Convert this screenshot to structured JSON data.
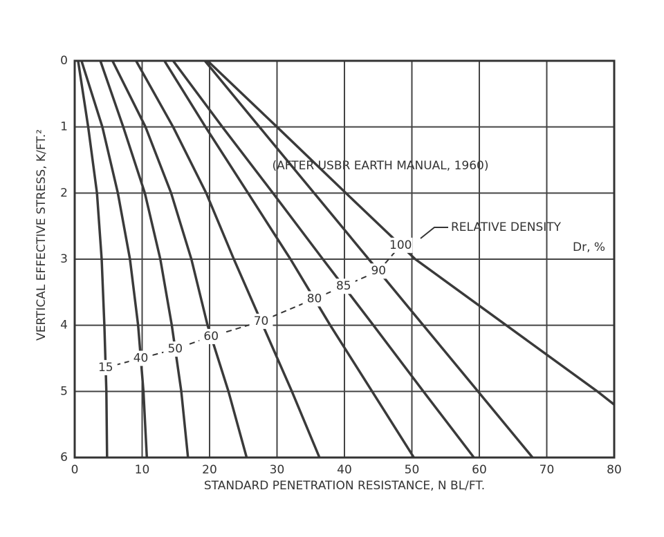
{
  "chart_data": {
    "type": "line",
    "x_label": "STANDARD PENETRATION RESISTANCE, N BL/FT.",
    "y_label": "VERTICAL EFFECTIVE STRESS, K/FT.²",
    "annotations": {
      "source": "(AFTER USBR EARTH MANUAL, 1960)",
      "legend_title": "RELATIVE DENSITY",
      "legend_unit": "Dr, %"
    },
    "xlim": [
      0,
      80
    ],
    "xticks": [
      0,
      10,
      20,
      30,
      40,
      50,
      60,
      70,
      80
    ],
    "ylim": [
      0,
      6
    ],
    "yticks": [
      0,
      1,
      2,
      3,
      4,
      5,
      6
    ],
    "y_reversed": true,
    "grid": true,
    "color": "#3a3a3a",
    "series": [
      {
        "name": "15",
        "x": [
          0.5,
          2.0,
          3.3,
          4.0,
          4.4,
          4.7,
          4.8
        ],
        "y": [
          0,
          1,
          2,
          3,
          4,
          5,
          6
        ]
      },
      {
        "name": "40",
        "x": [
          1.0,
          4.1,
          6.4,
          8.2,
          9.4,
          10.2,
          10.7
        ],
        "y": [
          0,
          1,
          2,
          3,
          4,
          5,
          6
        ]
      },
      {
        "name": "50",
        "x": [
          3.8,
          7.2,
          10.4,
          12.7,
          14.4,
          15.8,
          16.8
        ],
        "y": [
          0,
          1,
          2,
          3,
          4,
          5,
          6
        ]
      },
      {
        "name": "60",
        "x": [
          5.6,
          10.5,
          14.3,
          17.3,
          19.7,
          22.8,
          25.5
        ],
        "y": [
          0,
          1,
          2,
          3,
          4,
          5,
          6
        ]
      },
      {
        "name": "70",
        "x": [
          9.1,
          14.6,
          19.5,
          23.6,
          27.9,
          32.2,
          36.3
        ],
        "y": [
          0,
          1,
          2,
          3,
          4,
          5,
          6
        ]
      },
      {
        "name": "80",
        "x": [
          13.3,
          19.4,
          25.7,
          32.0,
          37.9,
          44.1,
          50.3
        ],
        "y": [
          0,
          1,
          2,
          3,
          4,
          5,
          6
        ]
      },
      {
        "name": "85",
        "x": [
          14.6,
          21.9,
          29.4,
          36.8,
          44.3,
          51.7,
          59.2
        ],
        "y": [
          0,
          1,
          2,
          3,
          4,
          5,
          6
        ]
      },
      {
        "name": "90",
        "x": [
          19.3,
          27.4,
          35.5,
          43.6,
          51.7,
          59.8,
          67.9
        ],
        "y": [
          0,
          1,
          2,
          3,
          4,
          5,
          6
        ]
      },
      {
        "name": "100",
        "x": [
          19.7,
          30.0,
          40.2,
          50.5,
          64.0,
          77.5,
          80.0
        ],
        "y": [
          0,
          1,
          2,
          3,
          4,
          5,
          5.2
        ]
      }
    ]
  }
}
